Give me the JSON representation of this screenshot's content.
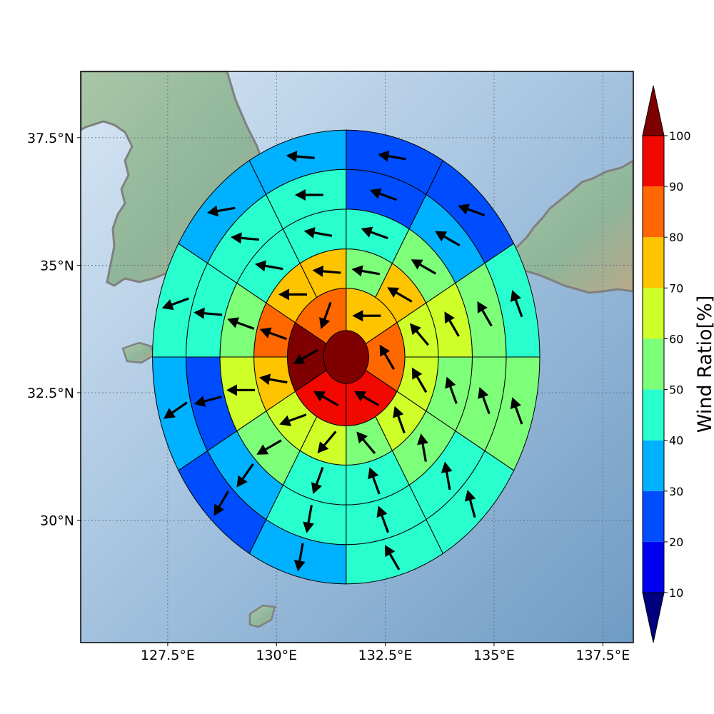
{
  "map": {
    "lon_range": [
      125.5,
      138.2
    ],
    "lat_range": [
      27.6,
      38.8
    ],
    "grid_lons": [
      127.5,
      130,
      132.5,
      135,
      137.5
    ],
    "grid_lats": [
      30,
      32.5,
      35,
      37.5
    ],
    "x_ticks": [
      {
        "lon": 127.5,
        "label": "127.5°E"
      },
      {
        "lon": 130,
        "label": "130°E"
      },
      {
        "lon": 132.5,
        "label": "132.5°E"
      },
      {
        "lon": 135,
        "label": "135°E"
      },
      {
        "lon": 137.5,
        "label": "137.5°E"
      }
    ],
    "y_ticks": [
      {
        "lat": 30,
        "label": "30°N"
      },
      {
        "lat": 32.5,
        "label": "32.5°N"
      },
      {
        "lat": 35,
        "label": "35°N"
      },
      {
        "lat": 37.5,
        "label": "37.5°N"
      }
    ],
    "colors": {
      "sea_light": "#c9ddf0",
      "sea_dark": "#7ea7cc",
      "land": "#8fb59a",
      "coast": "#808080"
    }
  },
  "chart_data": {
    "type": "polar-sector",
    "center": {
      "lon": 131.6,
      "lat": 33.2
    },
    "ring_radii_deg": [
      0.52,
      1.35,
      2.12,
      2.9,
      3.68,
      4.45
    ],
    "sector_angles_deg": [
      0,
      30,
      60,
      90,
      120,
      150,
      180,
      210,
      240,
      270,
      300,
      330
    ],
    "rings": [
      {
        "sectors": [
          100
        ]
      },
      {
        "sectors": [
          75,
          80,
          90,
          90,
          100,
          80
        ]
      },
      {
        "sectors": [
          55,
          70,
          65,
          60,
          60,
          55,
          60,
          65,
          70,
          80,
          70,
          70
        ]
      },
      {
        "sectors": [
          45,
          55,
          65,
          50,
          50,
          40,
          45,
          55,
          65,
          55,
          45,
          40
        ]
      },
      {
        "sectors": [
          25,
          35,
          55,
          50,
          45,
          45,
          40,
          35,
          25,
          45,
          45,
          40
        ]
      },
      {
        "sectors": [
          20,
          25,
          45,
          50,
          45,
          40,
          35,
          20,
          35,
          45,
          35,
          35
        ]
      }
    ],
    "arrows": [
      {
        "ring": 1,
        "dirs": [
          270,
          330,
          300,
          300,
          240,
          200
        ]
      },
      {
        "ring": 2,
        "dirs": [
          280,
          300,
          320,
          330,
          340,
          320,
          220,
          250,
          280,
          290,
          270,
          275
        ]
      },
      {
        "ring": 3,
        "dirs": [
          290,
          300,
          330,
          340,
          350,
          340,
          200,
          240,
          270,
          290,
          280,
          280
        ]
      },
      {
        "ring": 4,
        "dirs": [
          290,
          300,
          330,
          340,
          350,
          340,
          190,
          215,
          255,
          275,
          275,
          270
        ]
      },
      {
        "ring": 5,
        "dirs": [
          280,
          290,
          340,
          340,
          345,
          330,
          190,
          210,
          235,
          250,
          260,
          275
        ]
      }
    ],
    "colorbar": {
      "label": "Wind Ratio[%]",
      "ticks": [
        10,
        20,
        30,
        40,
        50,
        60,
        70,
        80,
        90,
        100
      ],
      "bins": [
        {
          "lo": 0,
          "hi": 10,
          "color": "#00007f"
        },
        {
          "lo": 10,
          "hi": 20,
          "color": "#0000f1"
        },
        {
          "lo": 20,
          "hi": 30,
          "color": "#004dff"
        },
        {
          "lo": 30,
          "hi": 40,
          "color": "#00b1ff"
        },
        {
          "lo": 40,
          "hi": 50,
          "color": "#29ffce"
        },
        {
          "lo": 50,
          "hi": 60,
          "color": "#7dff7a"
        },
        {
          "lo": 60,
          "hi": 70,
          "color": "#ceff29"
        },
        {
          "lo": 70,
          "hi": 80,
          "color": "#ffc400"
        },
        {
          "lo": 80,
          "hi": 90,
          "color": "#ff6800"
        },
        {
          "lo": 90,
          "hi": 100,
          "color": "#f10800"
        },
        {
          "lo": 100,
          "hi": 110,
          "color": "#7f0000"
        }
      ],
      "extend": "both"
    }
  }
}
